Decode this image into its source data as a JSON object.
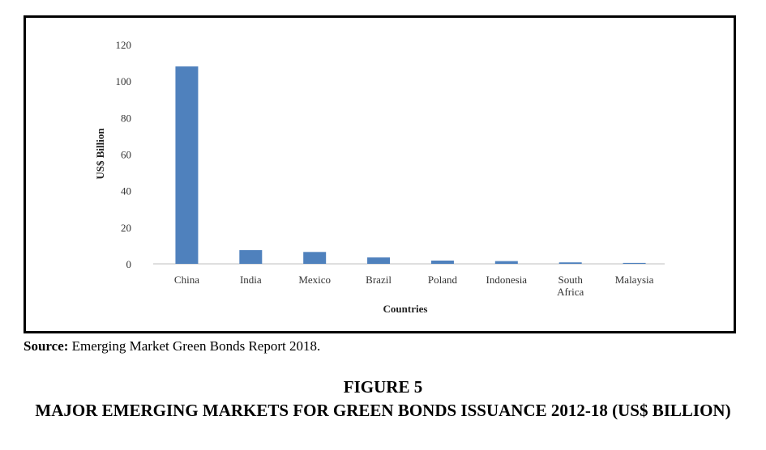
{
  "chart_data": {
    "type": "bar",
    "categories": [
      [
        "China"
      ],
      [
        "India"
      ],
      [
        "Mexico"
      ],
      [
        "Brazil"
      ],
      [
        "Poland"
      ],
      [
        "Indonesia"
      ],
      [
        "South",
        "Africa"
      ],
      [
        "Malaysia"
      ]
    ],
    "values": [
      108,
      7.5,
      6.5,
      3.5,
      1.8,
      1.5,
      0.8,
      0.5
    ],
    "title": "",
    "xlabel": "Countries",
    "ylabel": "US$ Billion",
    "ylim": [
      0,
      120
    ],
    "yticks": [
      "0",
      "20",
      "40",
      "60",
      "80",
      "100",
      "120"
    ],
    "grid": false,
    "legend": "none",
    "bar_color": "#4f81bd"
  },
  "source": {
    "label": "Source:",
    "text": "Emerging Market Green Bonds Report  2018."
  },
  "figure": {
    "number": "FIGURE 5",
    "title": "MAJOR EMERGING MARKETS FOR GREEN BONDS ISSUANCE 2012-18 (US$ BILLION)"
  }
}
